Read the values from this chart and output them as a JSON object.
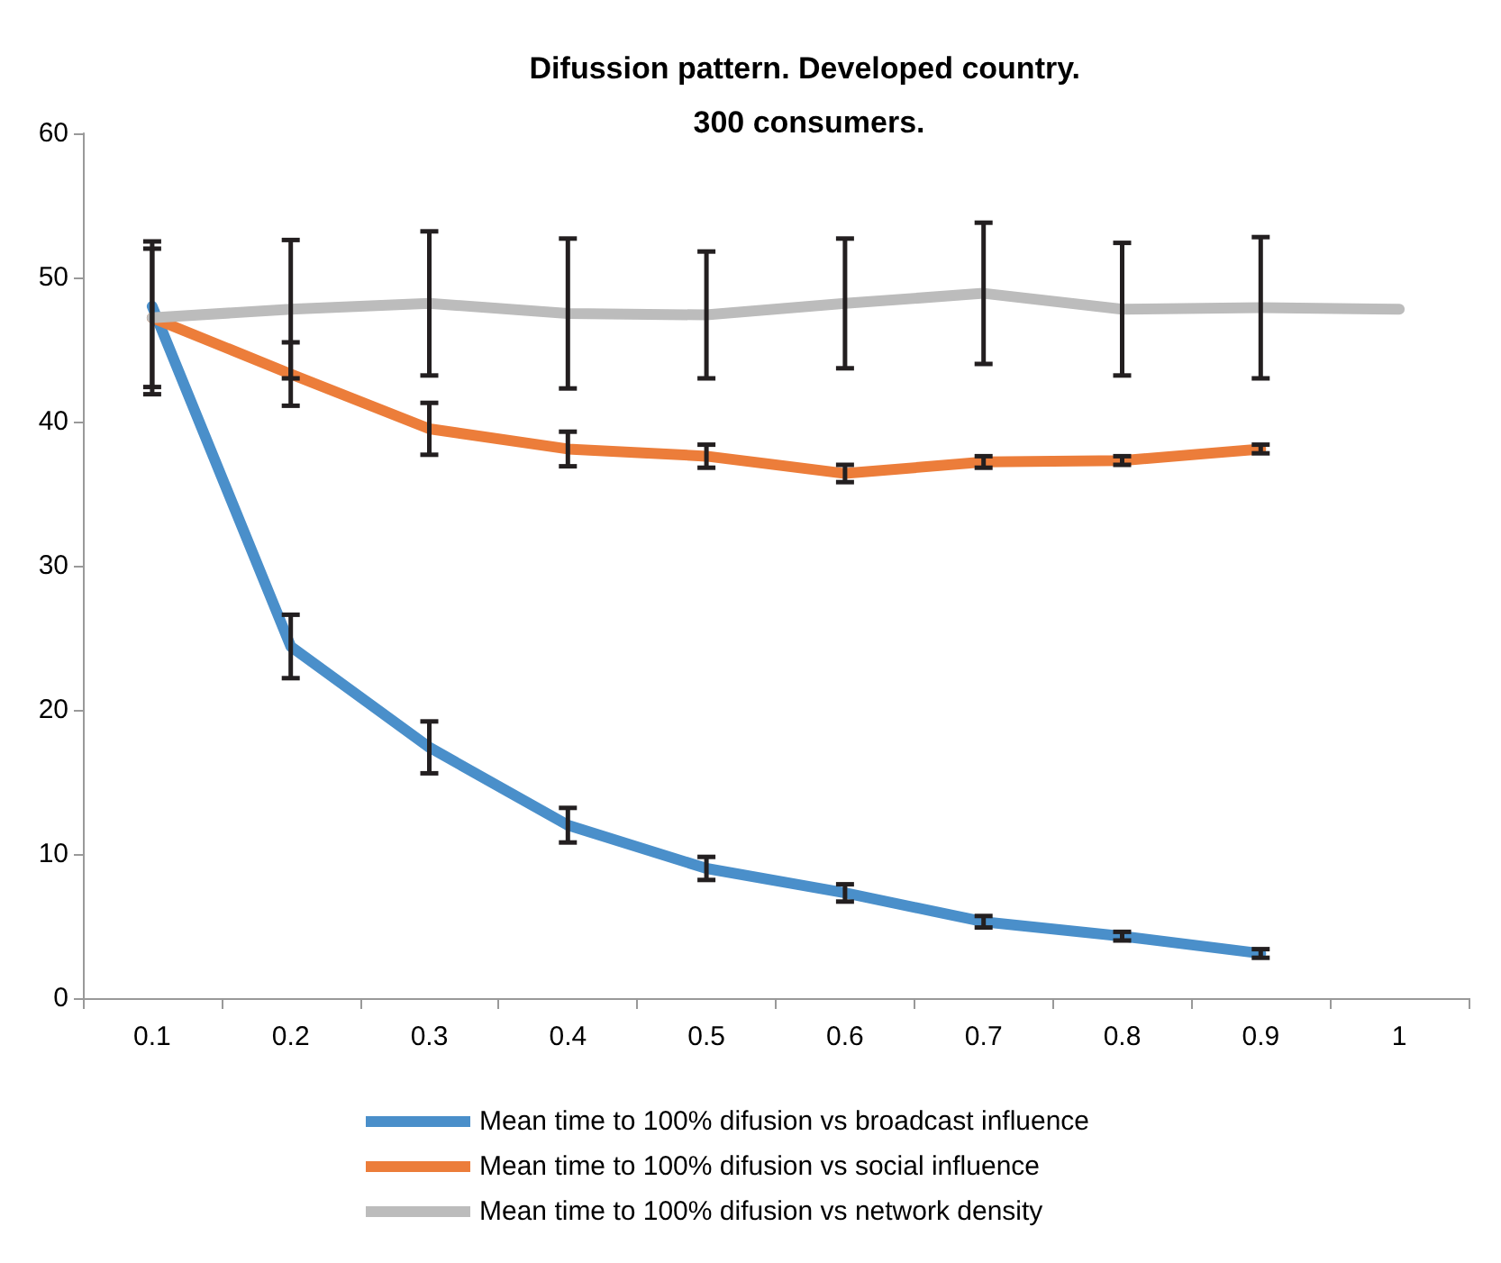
{
  "chart_data": {
    "type": "line",
    "title": "Difussion pattern. Developed country. 300 consumers.",
    "categories": [
      "0.1",
      "0.2",
      "0.3",
      "0.4",
      "0.5",
      "0.6",
      "0.7",
      "0.8",
      "0.9",
      "1"
    ],
    "series": [
      {
        "name": "Mean time to 100% difusion vs broadcast influence",
        "color": "#4a8fca",
        "values": [
          48,
          24.4,
          17.4,
          12.0,
          9.0,
          7.3,
          5.3,
          4.3,
          3.1,
          null
        ],
        "errors": [
          null,
          2.2,
          1.8,
          1.2,
          0.8,
          0.6,
          0.4,
          0.3,
          0.3,
          null
        ]
      },
      {
        "name": "Mean time to 100% difusion vs social influence",
        "color": "#ec7d3a",
        "values": [
          47.2,
          43.3,
          39.5,
          38.1,
          37.6,
          36.4,
          37.2,
          37.3,
          38.1,
          null
        ],
        "errors": [
          4.8,
          2.2,
          1.8,
          1.2,
          0.8,
          0.6,
          0.4,
          0.3,
          0.3,
          null
        ]
      },
      {
        "name": "Mean time to 100% difusion vs network density",
        "color": "#bcbcbc",
        "values": [
          47.2,
          47.8,
          48.2,
          47.5,
          47.4,
          48.2,
          48.9,
          47.8,
          47.9,
          47.8
        ],
        "errors": [
          5.3,
          4.8,
          5.0,
          5.2,
          4.4,
          4.5,
          4.9,
          4.6,
          4.9,
          null
        ]
      }
    ],
    "ylim": [
      0,
      60
    ],
    "yticks": [
      0,
      10,
      20,
      30,
      40,
      50,
      60
    ],
    "grid": false,
    "legend": "bottom",
    "marker": "none",
    "line_style": "solid"
  }
}
